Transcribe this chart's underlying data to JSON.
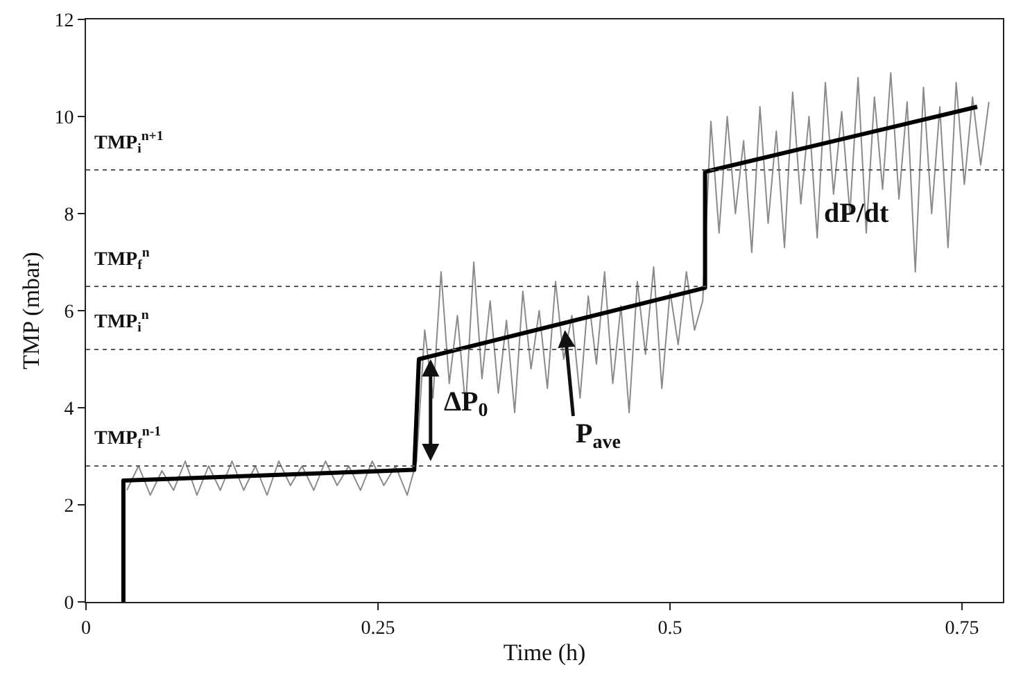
{
  "chart_data": {
    "type": "line",
    "xlabel": "Time (h)",
    "ylabel": "TMP (mbar)",
    "xlim": [
      0,
      0.785
    ],
    "ylim": [
      0,
      12
    ],
    "xticks": [
      0,
      0.25,
      0.5,
      0.75
    ],
    "yticks": [
      0,
      2,
      4,
      6,
      8,
      10,
      12
    ],
    "marker": "none",
    "series": [
      {
        "color": "#8a8a8a",
        "line_style": "solid",
        "x": [
          0.035,
          0.045,
          0.055,
          0.065,
          0.075,
          0.085,
          0.095,
          0.105,
          0.115,
          0.125,
          0.135,
          0.145,
          0.155,
          0.165,
          0.175,
          0.185,
          0.195,
          0.205,
          0.215,
          0.225,
          0.235,
          0.245,
          0.255,
          0.265,
          0.275,
          0.283,
          0.29,
          0.297,
          0.304,
          0.311,
          0.318,
          0.325,
          0.332,
          0.339,
          0.346,
          0.353,
          0.36,
          0.367,
          0.374,
          0.381,
          0.388,
          0.395,
          0.402,
          0.409,
          0.416,
          0.423,
          0.43,
          0.437,
          0.444,
          0.451,
          0.458,
          0.465,
          0.472,
          0.479,
          0.486,
          0.493,
          0.5,
          0.507,
          0.514,
          0.521,
          0.528,
          0.535,
          0.542,
          0.549,
          0.556,
          0.563,
          0.57,
          0.577,
          0.584,
          0.591,
          0.598,
          0.605,
          0.612,
          0.619,
          0.626,
          0.633,
          0.64,
          0.647,
          0.654,
          0.661,
          0.668,
          0.675,
          0.682,
          0.689,
          0.696,
          0.703,
          0.71,
          0.717,
          0.724,
          0.731,
          0.738,
          0.745,
          0.752,
          0.759,
          0.766,
          0.773
        ],
        "values": [
          2.3,
          2.8,
          2.2,
          2.7,
          2.3,
          2.9,
          2.2,
          2.8,
          2.3,
          2.9,
          2.3,
          2.8,
          2.2,
          2.9,
          2.4,
          2.8,
          2.3,
          2.9,
          2.4,
          2.8,
          2.3,
          2.9,
          2.4,
          2.8,
          2.2,
          2.9,
          5.6,
          4.2,
          6.8,
          4.5,
          5.9,
          4.0,
          7.0,
          4.6,
          6.2,
          4.3,
          5.8,
          3.9,
          6.4,
          4.8,
          6.0,
          4.4,
          6.6,
          5.0,
          5.9,
          4.2,
          6.3,
          4.9,
          6.8,
          4.5,
          6.1,
          3.9,
          6.6,
          5.1,
          6.9,
          4.4,
          6.4,
          5.3,
          6.8,
          5.6,
          6.2,
          9.9,
          7.6,
          10.0,
          8.0,
          9.5,
          7.2,
          10.2,
          7.8,
          9.7,
          7.3,
          10.5,
          8.2,
          10.0,
          7.5,
          10.7,
          8.4,
          10.1,
          8.0,
          10.8,
          7.6,
          10.4,
          8.5,
          10.9,
          8.3,
          10.3,
          6.8,
          10.6,
          8.0,
          10.2,
          7.3,
          10.7,
          8.6,
          10.4,
          9.0,
          10.3
        ]
      },
      {
        "color": "#000000",
        "line_style": "solid",
        "x": [
          0.032,
          0.032,
          0.281,
          0.285,
          0.53,
          0.53,
          0.763
        ],
        "values": [
          0,
          2.5,
          2.72,
          5.0,
          6.47,
          8.86,
          10.2
        ]
      }
    ],
    "ref_lines": [
      {
        "axis": "y",
        "value": 2.8,
        "label": "TMP$_{f}$$^{n-1}$",
        "color": "#555555",
        "line_style": "dotted"
      },
      {
        "axis": "y",
        "value": 5.2,
        "label": "TMP$_{i}$$^{n}$",
        "color": "#555555",
        "line_style": "dotted"
      },
      {
        "axis": "y",
        "value": 6.5,
        "label": "TMP$_{f}$$^{n}$",
        "color": "#555555",
        "line_style": "dotted"
      },
      {
        "axis": "y",
        "value": 8.9,
        "label": "TMP$_{i}$$^{n+1}$",
        "color": "#555555",
        "line_style": "dotted"
      }
    ],
    "annotations": [
      {
        "text": "ΔP$_{0}$",
        "x": 0.295,
        "y": 5.0
      },
      {
        "text": "P$_{ave}$",
        "x": 0.41,
        "y": 5.6
      },
      {
        "text": "dP/dt",
        "x": 0.66,
        "y": 8.0
      }
    ]
  }
}
